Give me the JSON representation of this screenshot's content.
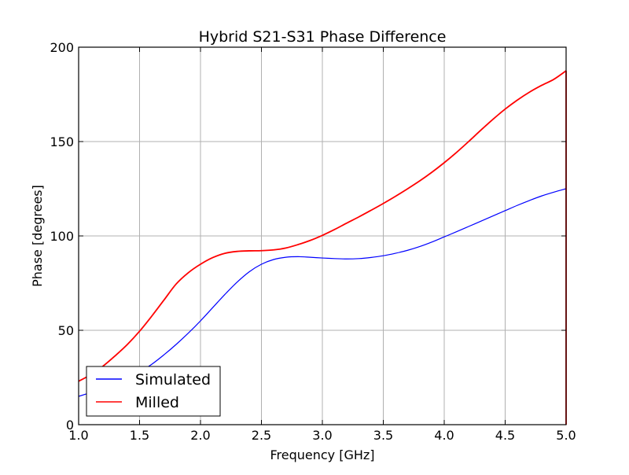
{
  "chart_data": {
    "type": "line",
    "title": "Hybrid S21-S31 Phase Difference",
    "xlabel": "Frequency [GHz]",
    "ylabel": "Phase [degrees]",
    "xlim": [
      1.0,
      5.0
    ],
    "ylim": [
      0,
      200
    ],
    "xticks": [
      1.0,
      1.5,
      2.0,
      2.5,
      3.0,
      3.5,
      4.0,
      4.5,
      5.0
    ],
    "xtick_labels": [
      "1.0",
      "1.5",
      "2.0",
      "2.5",
      "3.0",
      "3.5",
      "4.0",
      "4.5",
      "5.0"
    ],
    "yticks": [
      0,
      50,
      100,
      150,
      200
    ],
    "ytick_labels": [
      "0",
      "50",
      "100",
      "150",
      "200"
    ],
    "grid": true,
    "legend_position": "lower-left",
    "series": [
      {
        "name": "Simulated",
        "color": "#0000ff",
        "x": [
          1.0,
          1.1,
          1.2,
          1.3,
          1.4,
          1.5,
          1.6,
          1.7,
          1.8,
          1.9,
          2.0,
          2.1,
          2.2,
          2.3,
          2.4,
          2.5,
          2.6,
          2.7,
          2.8,
          2.9,
          3.0,
          3.1,
          3.2,
          3.3,
          3.4,
          3.5,
          3.6,
          3.7,
          3.8,
          3.9,
          4.0,
          4.1,
          4.2,
          4.3,
          4.4,
          4.5,
          4.6,
          4.7,
          4.8,
          4.9,
          5.0
        ],
        "y": [
          15,
          17,
          19,
          21.5,
          24.5,
          28,
          32,
          37,
          42.5,
          48.5,
          55,
          62,
          69,
          75.5,
          81,
          85,
          87.5,
          88.7,
          89,
          88.7,
          88.3,
          88,
          87.8,
          88,
          88.6,
          89.5,
          90.8,
          92.4,
          94.4,
          96.8,
          99.5,
          102.2,
          105,
          107.8,
          110.6,
          113.4,
          116.2,
          118.8,
          121.2,
          123.2,
          125
        ]
      },
      {
        "name": "Milled",
        "color": "#ff0000",
        "x": [
          1.0,
          1.1,
          1.2,
          1.3,
          1.4,
          1.5,
          1.6,
          1.7,
          1.8,
          1.9,
          2.0,
          2.1,
          2.2,
          2.3,
          2.4,
          2.5,
          2.6,
          2.7,
          2.8,
          2.9,
          3.0,
          3.1,
          3.2,
          3.3,
          3.4,
          3.5,
          3.6,
          3.7,
          3.8,
          3.9,
          4.0,
          4.1,
          4.2,
          4.3,
          4.4,
          4.5,
          4.6,
          4.7,
          4.8,
          4.9,
          5.0
        ],
        "y": [
          23,
          26.5,
          31,
          36.5,
          42.5,
          49.5,
          57.5,
          66,
          74.5,
          80.5,
          85,
          88.5,
          90.8,
          91.8,
          92.1,
          92.2,
          92.6,
          93.6,
          95.4,
          97.6,
          100.3,
          103.4,
          106.8,
          110.1,
          113.6,
          117.2,
          121,
          125,
          129.2,
          133.8,
          138.8,
          144.2,
          150,
          156,
          161.8,
          167.2,
          172,
          176.2,
          179.8,
          183,
          187.5
        ]
      }
    ]
  }
}
